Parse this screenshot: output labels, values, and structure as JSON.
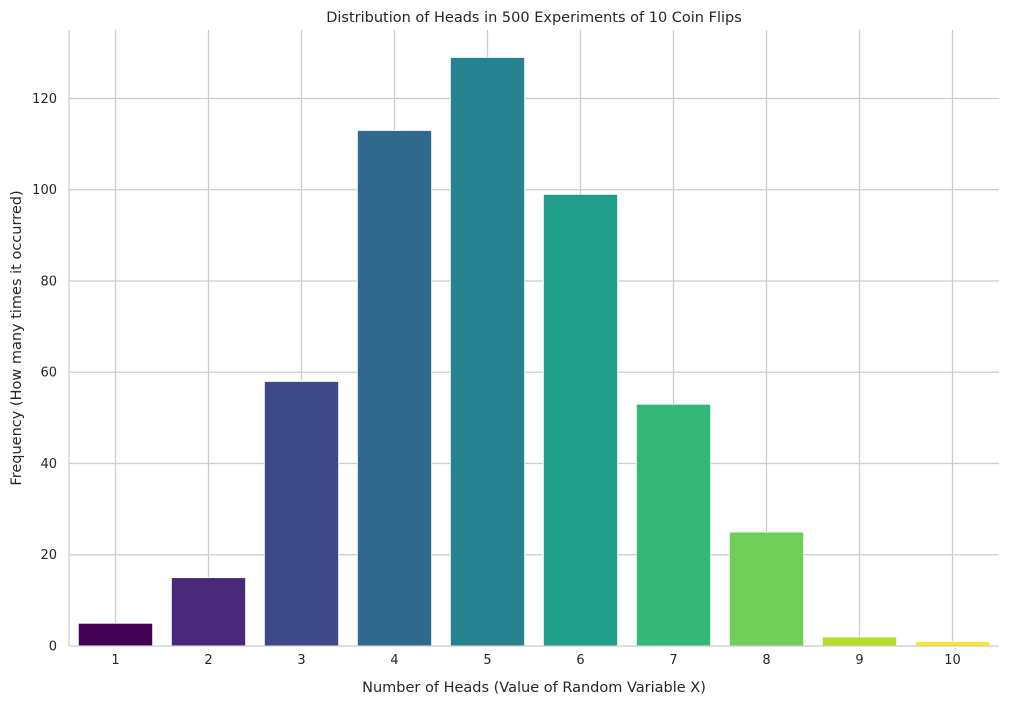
{
  "chart_data": {
    "type": "bar",
    "title": "Distribution of Heads in 500 Experiments of 10 Coin Flips",
    "xlabel": "Number of Heads (Value of Random Variable X)",
    "ylabel": "Frequency (How many times it occurred)",
    "categories": [
      "1",
      "2",
      "3",
      "4",
      "5",
      "6",
      "7",
      "8",
      "9",
      "10"
    ],
    "values": [
      5,
      15,
      58,
      113,
      129,
      99,
      53,
      25,
      2,
      1
    ],
    "colors": [
      "#440154",
      "#482878",
      "#3e4989",
      "#31688e",
      "#26828e",
      "#1f9e89",
      "#35b779",
      "#6ece58",
      "#b5de2b",
      "#fde725"
    ],
    "ylim": [
      0,
      135
    ],
    "yticks": [
      0,
      20,
      40,
      60,
      80,
      100,
      120
    ],
    "grid": true,
    "legend": "none"
  }
}
